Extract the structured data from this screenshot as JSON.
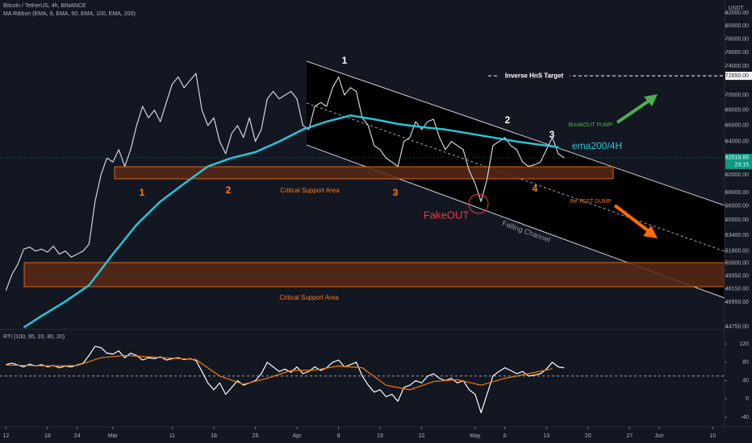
{
  "chart_data": [
    {
      "type": "line",
      "title": "Bitcoin / TetherUS, 4h, BINANCE",
      "subtitle": "MA Ribbon (EMA, 9, EMA, 50, EMA, 100, EMA, 200)",
      "unit": "USDT",
      "log": true,
      "ylim": [
        44600,
        84100
      ],
      "yticks": [
        {
          "value": 82000,
          "label": "82000.00"
        },
        {
          "value": 80000,
          "label": "80000.00"
        },
        {
          "value": 78000,
          "label": "78000.00"
        },
        {
          "value": 76000,
          "label": "76000.00"
        },
        {
          "value": 74000,
          "label": "74000.00"
        },
        {
          "value": 70000,
          "label": "70000.00"
        },
        {
          "value": 68000,
          "label": "68000.00"
        },
        {
          "value": 66000,
          "label": "66000.00"
        },
        {
          "value": 64000,
          "label": "64000.00"
        },
        {
          "value": 60000,
          "label": "60000.00"
        },
        {
          "value": 58000,
          "label": "58000.00"
        },
        {
          "value": 56500,
          "label": "56500.00"
        },
        {
          "value": 55000,
          "label": "55000.00"
        },
        {
          "value": 53400,
          "label": "53400.00"
        },
        {
          "value": 51800,
          "label": "51800.00"
        },
        {
          "value": 50600,
          "label": "50600.00"
        },
        {
          "value": 49350,
          "label": "49350.00"
        },
        {
          "value": 48150,
          "label": "48150.00"
        },
        {
          "value": 46950,
          "label": "46950.00"
        },
        {
          "value": 44750,
          "label": "44750.00"
        }
      ],
      "xlim": [
        "Feb 11",
        "Jun 12"
      ],
      "xticks": [
        {
          "value": "Feb 12",
          "label": "12"
        },
        {
          "value": "Feb 19",
          "label": "19"
        },
        {
          "value": "Feb 24",
          "label": "24"
        },
        {
          "value": "Mar 1",
          "label": "Mar"
        },
        {
          "value": "Mar 11",
          "label": "11"
        },
        {
          "value": "Mar 18",
          "label": "18"
        },
        {
          "value": "Mar 25",
          "label": "25"
        },
        {
          "value": "Apr 1",
          "label": "Apr"
        },
        {
          "value": "Apr 8",
          "label": "8"
        },
        {
          "value": "Apr 15",
          "label": "15"
        },
        {
          "value": "Apr 22",
          "label": "22"
        },
        {
          "value": "May 1",
          "label": "May"
        },
        {
          "value": "May 6",
          "label": "6"
        },
        {
          "value": "May 13",
          "label": "13"
        },
        {
          "value": "May 20",
          "label": "20"
        },
        {
          "value": "May 27",
          "label": "27"
        },
        {
          "value": "Jun 1",
          "label": "Jun"
        },
        {
          "value": "Jun 10",
          "label": "10"
        }
      ],
      "series": [
        {
          "color": "#d1d4dc",
          "x": [
            "Feb 12",
            "Feb 13",
            "Feb 14",
            "Feb 15",
            "Feb 16",
            "Feb 17",
            "Feb 18",
            "Feb 19",
            "Feb 20",
            "Feb 21",
            "Feb 22",
            "Feb 23",
            "Feb 24",
            "Feb 25",
            "Feb 26",
            "Feb 27",
            "Feb 28",
            "Feb 29",
            "Mar 1",
            "Mar 2",
            "Mar 3",
            "Mar 4",
            "Mar 5",
            "Mar 6",
            "Mar 7",
            "Mar 8",
            "Mar 9",
            "Mar 10",
            "Mar 11",
            "Mar 12",
            "Mar 13",
            "Mar 14",
            "Mar 15",
            "Mar 16",
            "Mar 17",
            "Mar 18",
            "Mar 19",
            "Mar 20",
            "Mar 21",
            "Mar 22",
            "Mar 23",
            "Mar 24",
            "Mar 25",
            "Mar 26",
            "Mar 27",
            "Mar 28",
            "Mar 29",
            "Mar 30",
            "Mar 31",
            "Apr 1",
            "Apr 2",
            "Apr 3",
            "Apr 4",
            "Apr 5",
            "Apr 6",
            "Apr 7",
            "Apr 8",
            "Apr 9",
            "Apr 10",
            "Apr 11",
            "Apr 12",
            "Apr 13",
            "Apr 14",
            "Apr 15",
            "Apr 16",
            "Apr 17",
            "Apr 18",
            "Apr 19",
            "Apr 20",
            "Apr 21",
            "Apr 22",
            "Apr 23",
            "Apr 24",
            "Apr 25",
            "Apr 26",
            "Apr 27",
            "Apr 28",
            "Apr 29",
            "Apr 30",
            "May 1",
            "May 2",
            "May 3",
            "May 4",
            "May 5",
            "May 6",
            "May 7",
            "May 8",
            "May 9",
            "May 10",
            "May 11",
            "May 12",
            "May 13",
            "May 14",
            "May 15",
            "May 16"
          ],
          "values": [
            48000,
            49500,
            50500,
            52000,
            52200,
            51800,
            52000,
            51700,
            52300,
            51500,
            51800,
            51200,
            51500,
            51800,
            52500,
            57000,
            60000,
            62000,
            61500,
            63000,
            61000,
            63000,
            66000,
            68500,
            67000,
            68000,
            66500,
            69000,
            71500,
            72500,
            71000,
            72000,
            73000,
            68000,
            66000,
            67000,
            64000,
            62500,
            65000,
            66000,
            64500,
            67000,
            64000,
            65500,
            69500,
            70500,
            69500,
            70000,
            70500,
            69500,
            66000,
            65500,
            68500,
            69000,
            68500,
            71000,
            72500,
            70000,
            71000,
            70500,
            67000,
            66000,
            63500,
            63000,
            62000,
            61500,
            61000,
            64000,
            64500,
            66500,
            65500,
            66500,
            66800,
            64500,
            63000,
            64000,
            63500,
            63000,
            60500,
            59000,
            57000,
            59500,
            63500,
            64000,
            64500,
            63500,
            63000,
            61500,
            61000,
            61200,
            61500,
            63000,
            64500,
            62500,
            62000
          ]
        },
        {
          "color": "#26c6da",
          "x": [
            "Feb 15",
            "Feb 18",
            "Feb 22",
            "Feb 26",
            "Mar 1",
            "Mar 5",
            "Mar 9",
            "Mar 13",
            "Mar 17",
            "Mar 21",
            "Mar 25",
            "Mar 29",
            "Apr 2",
            "Apr 6",
            "Apr 10",
            "Apr 14",
            "Apr 18",
            "Apr 22",
            "Apr 26",
            "Apr 30",
            "May 4",
            "May 8",
            "May 12",
            "May 15"
          ],
          "values": [
            44700,
            45700,
            47000,
            48500,
            51500,
            54500,
            57000,
            59000,
            61000,
            62000,
            62700,
            64000,
            65500,
            66500,
            67300,
            66800,
            66200,
            65800,
            65500,
            65000,
            64500,
            64000,
            63600,
            63300
          ]
        }
      ],
      "target": {
        "value": 72650,
        "label": "72650.00"
      },
      "target_label": "Inverse HnS Target",
      "last": {
        "value": 62019.89,
        "label": "62019.89"
      },
      "countdown": "23:15",
      "annotations": [
        "1",
        "2",
        "3",
        "1",
        "2",
        "3",
        "4",
        "Critical Support Area",
        "Critical Support Area",
        "FakeOUT",
        "Falling Channel",
        "BreakOUT PUMP",
        "Re-TEST DUMP",
        "ema200/4H"
      ]
    },
    {
      "type": "line",
      "title": "RTI (100, 95, 20, 80, 20)",
      "ylim": [
        -61,
        150
      ],
      "yticks": [
        120,
        80,
        40,
        0,
        -40
      ],
      "level": 50,
      "series": [
        {
          "color": "#ffffff",
          "values": [
            75,
            78,
            74,
            70,
            76,
            72,
            75,
            70,
            73,
            68,
            72,
            70,
            74,
            78,
            95,
            115,
            112,
            100,
            98,
            105,
            90,
            100,
            95,
            85,
            90,
            88,
            92,
            85,
            88,
            90,
            86,
            88,
            84,
            60,
            35,
            20,
            35,
            10,
            25,
            40,
            30,
            35,
            40,
            55,
            80,
            70,
            60,
            65,
            58,
            70,
            55,
            60,
            70,
            62,
            68,
            80,
            85,
            70,
            75,
            80,
            50,
            30,
            15,
            20,
            5,
            10,
            -5,
            25,
            30,
            40,
            35,
            50,
            55,
            45,
            40,
            45,
            35,
            40,
            20,
            10,
            -30,
            10,
            50,
            60,
            68,
            62,
            55,
            60,
            50,
            52,
            55,
            65,
            80,
            70,
            68
          ]
        },
        {
          "color": "#f57c00",
          "x": [
            "Feb 12",
            "Feb 16",
            "Feb 20",
            "Feb 24",
            "Feb 28",
            "Mar 3",
            "Mar 7",
            "Mar 11",
            "Mar 15",
            "Mar 19",
            "Mar 23",
            "Mar 27",
            "Mar 31",
            "Apr 4",
            "Apr 8",
            "Apr 12",
            "Apr 16",
            "Apr 20",
            "Apr 24",
            "Apr 28",
            "May 2",
            "May 6",
            "May 10",
            "May 14"
          ],
          "values": [
            74,
            73,
            72,
            73,
            90,
            95,
            92,
            89,
            86,
            50,
            32,
            45,
            62,
            63,
            72,
            68,
            30,
            20,
            38,
            42,
            30,
            45,
            55,
            66
          ]
        }
      ]
    }
  ]
}
